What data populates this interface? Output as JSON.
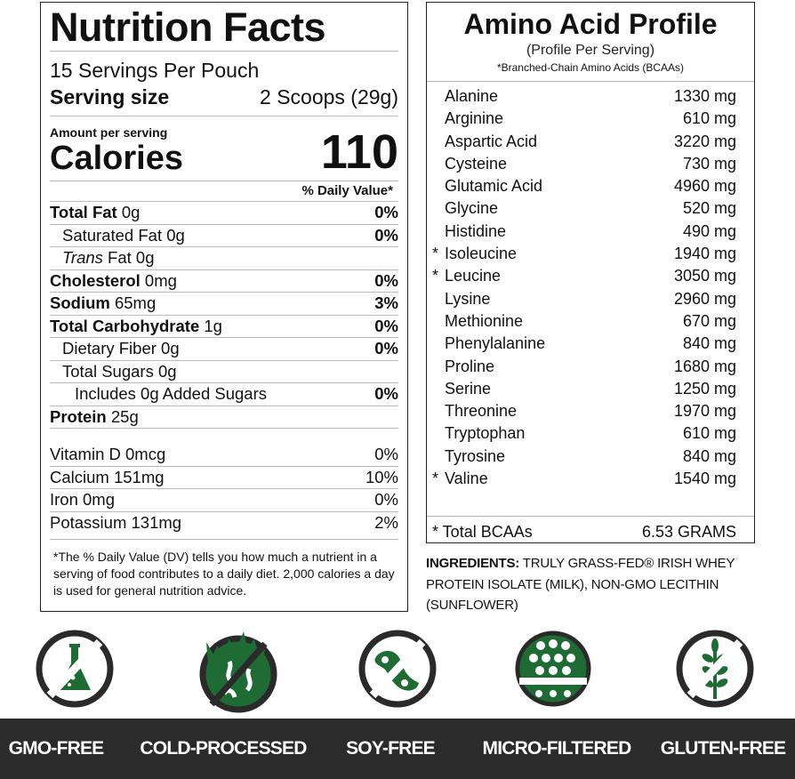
{
  "nutrition": {
    "title": "Nutrition Facts",
    "servings": "15 Servings Per Pouch",
    "serving_size_label": "Serving size",
    "serving_size_value": "2 Scoops (29g)",
    "amount_per_serving": "Amount per serving",
    "calories_label": "Calories",
    "calories_value": "110",
    "dv_header": "% Daily Value*",
    "rows": [
      {
        "bold": "Total Fat",
        "amount": " 0g",
        "pct": "0%",
        "indent": 0
      },
      {
        "bold": "",
        "amount": "Saturated Fat 0g",
        "pct": "0%",
        "indent": 1
      },
      {
        "bold": "",
        "italic": "Trans",
        "amount": " Fat 0g",
        "pct": "",
        "indent": 1
      },
      {
        "bold": "Cholesterol",
        "amount": " 0mg",
        "pct": "0%",
        "indent": 0
      },
      {
        "bold": "Sodium",
        "amount": " 65mg",
        "pct": "3%",
        "indent": 0
      },
      {
        "bold": "Total Carbohydrate",
        "amount": " 1g",
        "pct": "0%",
        "indent": 0
      },
      {
        "bold": "",
        "amount": "Dietary Fiber 0g",
        "pct": "0%",
        "indent": 1
      },
      {
        "bold": "",
        "amount": "Total Sugars 0g",
        "pct": "",
        "indent": 1
      },
      {
        "bold": "",
        "amount": "Includes 0g Added Sugars",
        "pct": "0%",
        "indent": 2
      },
      {
        "bold": "Protein",
        "amount": " 25g",
        "pct": "",
        "indent": 0
      }
    ],
    "vitamins": [
      {
        "name": "Vitamin D 0mcg",
        "pct": "0%"
      },
      {
        "name": "Calcium 151mg",
        "pct": "10%"
      },
      {
        "name": "Iron 0mg",
        "pct": "0%"
      },
      {
        "name": "Potassium 131mg",
        "pct": "2%"
      }
    ],
    "footnote": "*The % Daily Value (DV) tells you how much a nutrient in a serving of food contributes to a daily diet. 2,000 calories a day is used for general nutrition advice."
  },
  "amino": {
    "title": "Amino Acid Profile",
    "subtitle": "(Profile Per Serving)",
    "note": "*Branched-Chain Amino Acids (BCAAs)",
    "rows": [
      {
        "name": "Alanine",
        "value": "1330 mg",
        "bcaa": false
      },
      {
        "name": "Arginine",
        "value": "610 mg",
        "bcaa": false
      },
      {
        "name": "Aspartic Acid",
        "value": "3220 mg",
        "bcaa": false
      },
      {
        "name": "Cysteine",
        "value": "730 mg",
        "bcaa": false
      },
      {
        "name": "Glutamic Acid",
        "value": "4960 mg",
        "bcaa": false
      },
      {
        "name": "Glycine",
        "value": "520 mg",
        "bcaa": false
      },
      {
        "name": "Histidine",
        "value": "490 mg",
        "bcaa": false
      },
      {
        "name": "Isoleucine",
        "value": "1940 mg",
        "bcaa": true
      },
      {
        "name": "Leucine",
        "value": "3050 mg",
        "bcaa": true
      },
      {
        "name": "Lysine",
        "value": "2960 mg",
        "bcaa": false
      },
      {
        "name": "Methionine",
        "value": "670 mg",
        "bcaa": false
      },
      {
        "name": "Phenylalanine",
        "value": "840 mg",
        "bcaa": false
      },
      {
        "name": "Proline",
        "value": "1680 mg",
        "bcaa": false
      },
      {
        "name": "Serine",
        "value": "1250 mg",
        "bcaa": false
      },
      {
        "name": "Threonine",
        "value": "1970 mg",
        "bcaa": false
      },
      {
        "name": "Tryptophan",
        "value": "610 mg",
        "bcaa": false
      },
      {
        "name": "Tyrosine",
        "value": "840 mg",
        "bcaa": false
      },
      {
        "name": "Valine",
        "value": "1540 mg",
        "bcaa": true
      }
    ],
    "total_label": "* Total BCAAs",
    "total_value": "6.53 GRAMS"
  },
  "ingredients": {
    "label": "INGREDIENTS:",
    "text": " TRULY GRASS-FED® IRISH WHEY PROTEIN ISOLATE (MILK), NON-GMO LECITHIN (SUNFLOWER)"
  },
  "badges": [
    {
      "label": "GMO-FREE",
      "icon": "flask-crossed-icon"
    },
    {
      "label": "COLD-PROCESSED",
      "icon": "flame-crossed-icon"
    },
    {
      "label": "SOY-FREE",
      "icon": "soybean-crossed-icon"
    },
    {
      "label": "MICRO-FILTERED",
      "icon": "filter-icon"
    },
    {
      "label": "GLUTEN-FREE",
      "icon": "wheat-crossed-icon"
    }
  ],
  "colors": {
    "green": "#1e6b34",
    "ring": "#2a2a2a",
    "band": "#2b2b2b"
  }
}
